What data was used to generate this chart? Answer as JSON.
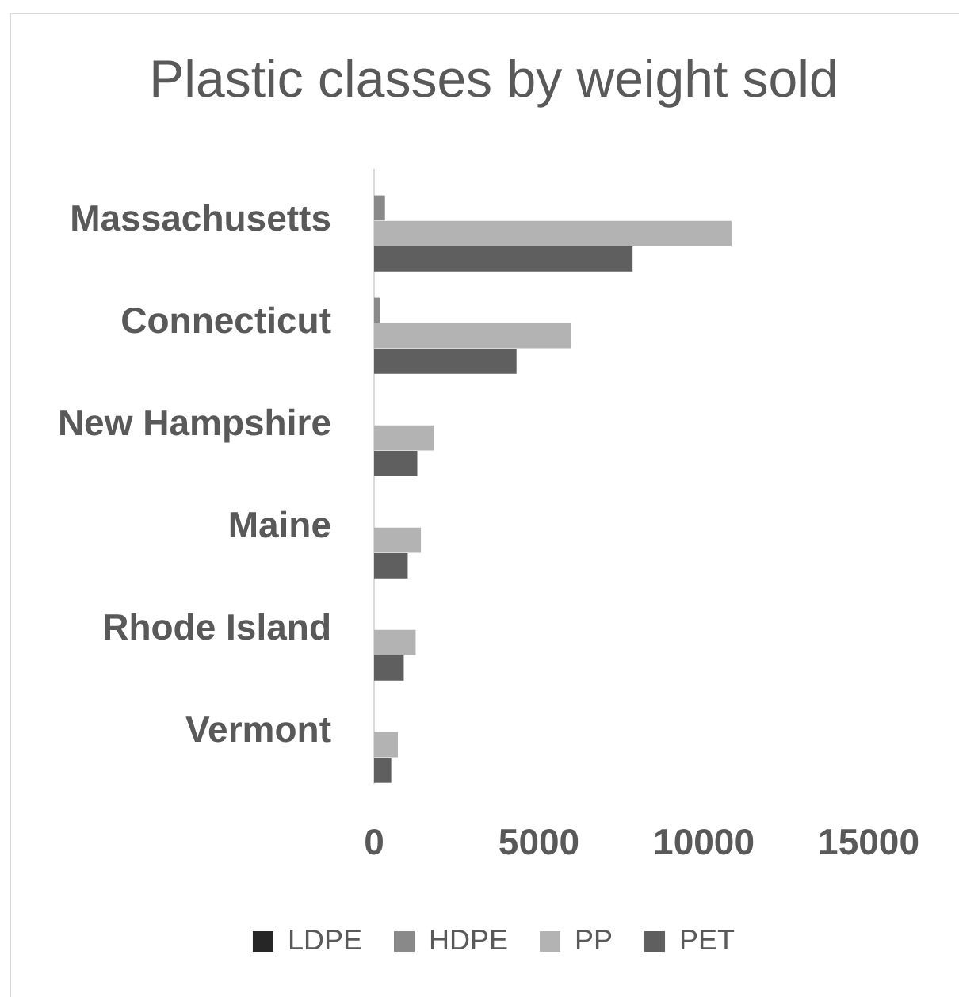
{
  "chart_data": {
    "type": "bar",
    "orientation": "horizontal",
    "title": "Plastic classes by weight sold",
    "categories": [
      "Massachusetts",
      "Connecticut",
      "New Hampshire",
      "Maine",
      "Rhode Island",
      "Vermont"
    ],
    "series": [
      {
        "name": "LDPE",
        "color": "#262626",
        "values": [
          0,
          0,
          0,
          0,
          0,
          0
        ]
      },
      {
        "name": "HDPE",
        "color": "#898989",
        "values": [
          330,
          170,
          0,
          0,
          0,
          0
        ]
      },
      {
        "name": "PP",
        "color": "#b3b3b3",
        "values": [
          10840,
          5970,
          1810,
          1420,
          1260,
          720
        ]
      },
      {
        "name": "PET",
        "color": "#5f5f5f",
        "values": [
          7840,
          4320,
          1310,
          1020,
          900,
          520
        ]
      }
    ],
    "xlim": [
      0,
      15000
    ],
    "xticks": [
      0,
      5000,
      10000,
      15000
    ],
    "grid": false,
    "legend": "bottom"
  }
}
